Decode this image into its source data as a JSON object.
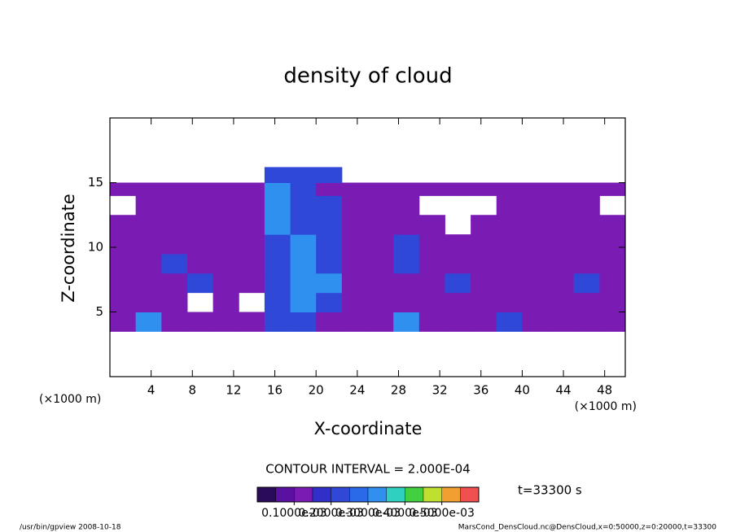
{
  "chart_data": {
    "type": "contour",
    "title": "density of cloud",
    "xlabel": "X-coordinate",
    "ylabel": "Z-coordinate",
    "x_unit": "(×1000 m)",
    "y_unit": "(×1000 m)",
    "xlim": [
      0,
      50
    ],
    "ylim": [
      0,
      20
    ],
    "xticks": [
      4,
      8,
      12,
      16,
      20,
      24,
      28,
      32,
      36,
      40,
      44,
      48
    ],
    "yticks": [
      5,
      10,
      15
    ],
    "contour_interval": "CONTOUR INTERVAL = 2.000E-04",
    "time_label": "t=33300 s",
    "field": {
      "x_edges": [
        0,
        2.5,
        5,
        7.5,
        10,
        12.5,
        15,
        17.5,
        20,
        22.5,
        25,
        27.5,
        30,
        32.5,
        35,
        37.5,
        40,
        42.5,
        45,
        47.5,
        50
      ],
      "z_edges": [
        3.5,
        5,
        6.5,
        8,
        9.5,
        11,
        12.5,
        14,
        15,
        16.2
      ],
      "values": [
        [
          0.0001,
          0.0003,
          0.0001,
          0.0001,
          0.0001,
          0.0001,
          0.0002,
          0.0002,
          0.0001,
          0.0001,
          0.0001,
          0.0003,
          0.0001,
          0.0001,
          0.0001,
          0.0002,
          0.0001,
          0.0001,
          0.0001,
          0.0001
        ],
        [
          0.0001,
          0.0001,
          0.0001,
          null,
          0.0001,
          null,
          0.0002,
          0.0003,
          0.0002,
          0.0001,
          0.0001,
          0.0001,
          0.0001,
          0.0001,
          0.0001,
          0.0001,
          0.0001,
          0.0001,
          0.0001,
          0.0001
        ],
        [
          0.0001,
          0.0001,
          0.0001,
          0.0002,
          0.0001,
          0.0001,
          0.0002,
          0.0003,
          0.0003,
          0.0001,
          0.0001,
          0.0001,
          0.0001,
          0.0002,
          0.0001,
          0.0001,
          0.0001,
          0.0001,
          0.0002,
          0.0001
        ],
        [
          0.0001,
          0.0001,
          0.0002,
          0.0001,
          0.0001,
          0.0001,
          0.0002,
          0.0003,
          0.0002,
          0.0001,
          0.0001,
          0.0002,
          0.0001,
          0.0001,
          0.0001,
          0.0001,
          0.0001,
          0.0001,
          0.0001,
          0.0001
        ],
        [
          0.0001,
          0.0001,
          0.0001,
          0.0001,
          0.0001,
          0.0001,
          0.0002,
          0.0003,
          0.0002,
          0.0001,
          0.0001,
          0.0002,
          0.0001,
          0.0001,
          0.0001,
          0.0001,
          0.0001,
          0.0001,
          0.0001,
          0.0001
        ],
        [
          0.0001,
          0.0001,
          0.0001,
          0.0001,
          0.0001,
          0.0001,
          0.0003,
          0.0002,
          0.0002,
          0.0001,
          0.0001,
          0.0001,
          0.0001,
          null,
          0.0001,
          0.0001,
          0.0001,
          0.0001,
          0.0001,
          0.0001
        ],
        [
          null,
          0.0001,
          0.0001,
          0.0001,
          0.0001,
          0.0001,
          0.0003,
          0.0002,
          0.0002,
          0.0001,
          0.0001,
          0.0001,
          null,
          null,
          null,
          0.0001,
          0.0001,
          0.0001,
          0.0001,
          null
        ],
        [
          0.0001,
          0.0001,
          0.0001,
          0.0001,
          0.0001,
          0.0001,
          0.0003,
          0.0002,
          0.0001,
          0.0001,
          0.0001,
          0.0001,
          0.0001,
          0.0001,
          0.0001,
          0.0001,
          0.0001,
          0.0001,
          0.0001,
          0.0001
        ],
        [
          null,
          null,
          null,
          null,
          null,
          null,
          0.0002,
          0.0002,
          0.0002,
          null,
          null,
          null,
          null,
          null,
          null,
          null,
          null,
          null,
          null,
          null
        ]
      ]
    },
    "colorbar": {
      "levels": [
        0,
        5e-05,
        0.0001,
        0.00015,
        0.0002,
        0.00025,
        0.0003,
        0.00035,
        0.0004,
        0.00045,
        0.0005,
        0.00055,
        0.0006
      ],
      "colors": [
        "#2a0a5a",
        "#5a10a0",
        "#7a1cb4",
        "#3030c8",
        "#3048d8",
        "#2a6ae8",
        "#3090f0",
        "#30d0c0",
        "#40d040",
        "#c0e030",
        "#f0a030",
        "#f05050"
      ],
      "ticks": [
        {
          "value": 0.0001,
          "label": "0.1000e-03"
        },
        {
          "value": 0.0002,
          "label": "0.2000e-03"
        },
        {
          "value": 0.0003,
          "label": "0.3000e-03"
        },
        {
          "value": 0.0004,
          "label": "0.4000e-03"
        },
        {
          "value": 0.0005,
          "label": "0.5000e-03"
        }
      ]
    },
    "footer_left": "/usr/bin/gpview  2008-10-18",
    "footer_right": "MarsCond_DensCloud.nc@DensCloud,x=0:50000,z=0:20000,t=33300"
  }
}
